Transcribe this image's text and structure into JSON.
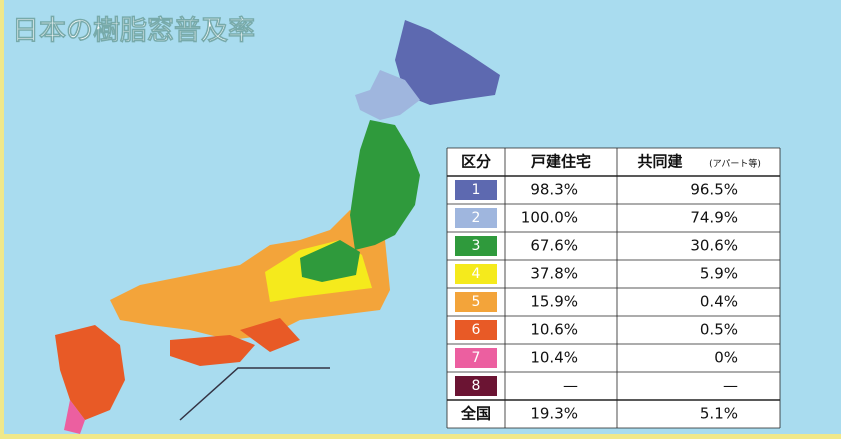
{
  "title": "日本の樹脂窓普及率",
  "table": {
    "header": [
      "区分",
      "戸建住宅",
      "共同建"
    ],
    "header_note": "(アパート等)",
    "zones": [
      {
        "label": "1",
        "color": "#5d69b0",
        "house": "98.3%",
        "apartment": "96.5%"
      },
      {
        "label": "2",
        "color": "#9fb6de",
        "house": "100.0%",
        "apartment": "74.9%"
      },
      {
        "label": "3",
        "color": "#2f9a3c",
        "house": "67.6%",
        "apartment": "30.6%"
      },
      {
        "label": "4",
        "color": "#f5ea1c",
        "house": "37.8%",
        "apartment": "5.9%"
      },
      {
        "label": "5",
        "color": "#f3a43a",
        "house": "15.9%",
        "apartment": "0.4%"
      },
      {
        "label": "6",
        "color": "#e85a26",
        "house": "10.6%",
        "apartment": "0.5%"
      },
      {
        "label": "7",
        "color": "#ec5fa0",
        "house": "10.4%",
        "apartment": "0%"
      },
      {
        "label": "8",
        "color": "#6b1433",
        "house": "—",
        "apartment": "—"
      }
    ],
    "total": {
      "label": "全国",
      "house": "19.3%",
      "apartment": "5.1%"
    }
  }
}
